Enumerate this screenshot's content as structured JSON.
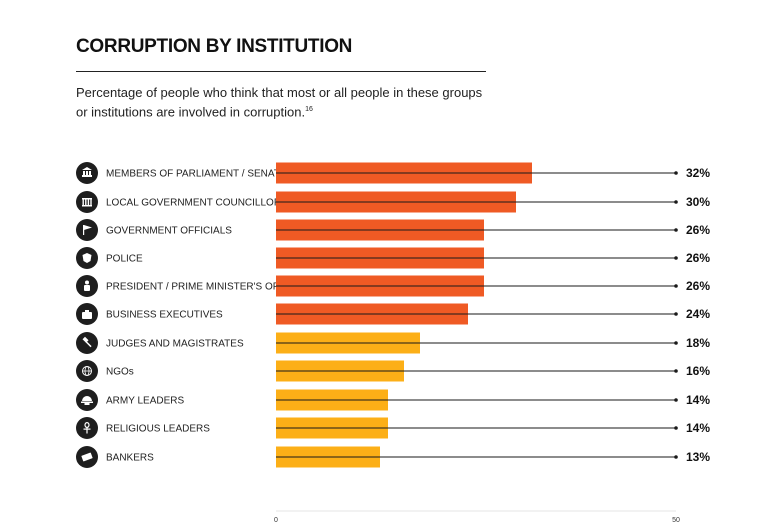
{
  "header": {
    "title": "CORRUPTION BY INSTITUTION",
    "subtitle": "Percentage of people who think that most or all people in these groups or institutions are involved in corruption.",
    "footnote": "16"
  },
  "colors": {
    "high": "#ef5a24",
    "low": "#fcaf17",
    "line": "#1a1a1a",
    "icon_bg": "#1e1e1e"
  },
  "chart_data": {
    "type": "bar",
    "orientation": "horizontal",
    "title": "CORRUPTION BY INSTITUTION",
    "categories": [
      "MEMBERS OF PARLIAMENT / SENATORS",
      "LOCAL GOVERNMENT COUNCILLORS",
      "GOVERNMENT OFFICIALS",
      "POLICE",
      "PRESIDENT / PRIME MINISTER'S OFFICE",
      "BUSINESS EXECUTIVES",
      "JUDGES AND MAGISTRATES",
      "NGOs",
      "ARMY LEADERS",
      "RELIGIOUS LEADERS",
      "BANKERS"
    ],
    "values": [
      32,
      30,
      26,
      26,
      26,
      24,
      18,
      16,
      14,
      14,
      13
    ],
    "value_labels": [
      "32%",
      "30%",
      "26%",
      "26%",
      "26%",
      "24%",
      "18%",
      "16%",
      "14%",
      "14%",
      "13%"
    ],
    "bar_colors": [
      "high",
      "high",
      "high",
      "high",
      "high",
      "high",
      "low",
      "low",
      "low",
      "low",
      "low"
    ],
    "icons": [
      "parliament-icon",
      "town-hall-icon",
      "flag-icon",
      "police-badge-icon",
      "president-icon",
      "briefcase-icon",
      "gavel-icon",
      "globe-icon",
      "army-helmet-icon",
      "ankh-icon",
      "money-icon"
    ],
    "xlim": [
      0,
      50
    ],
    "x_ticks": [
      "0",
      "50"
    ],
    "legend": "none",
    "grid": false
  }
}
